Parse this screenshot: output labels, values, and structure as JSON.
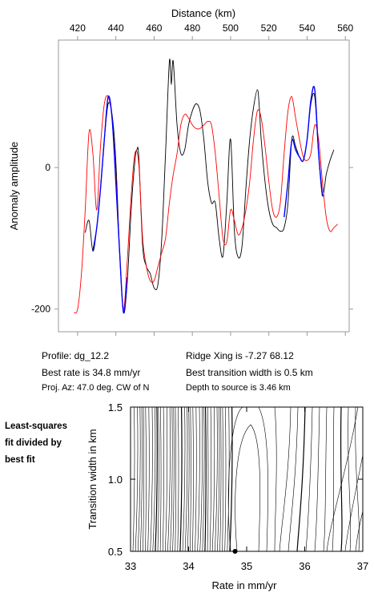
{
  "chart_data": [
    {
      "type": "line",
      "xlabel": "Distance (km)",
      "ylabel": "Anomaly amplitude",
      "xlim": [
        410,
        562
      ],
      "ylim": [
        -232,
        180
      ],
      "x_ticks": [
        420,
        440,
        460,
        480,
        500,
        520,
        540,
        560
      ],
      "y_ticks": [
        0,
        -200
      ],
      "series": [
        {
          "color": "#000000",
          "x": [
            424,
            426,
            428,
            430,
            432,
            434,
            436,
            438,
            440,
            442,
            444,
            446,
            448,
            450,
            451,
            452,
            454,
            456,
            458,
            460,
            462,
            464,
            466,
            468,
            469,
            470,
            472,
            474,
            476,
            478,
            480,
            482,
            484,
            486,
            488,
            490,
            492,
            494,
            496,
            498,
            500,
            502,
            504,
            506,
            508,
            510,
            512,
            514,
            515,
            516,
            518,
            520,
            522,
            524,
            526,
            528,
            530,
            532,
            534,
            536,
            538,
            540,
            542,
            544,
            546,
            548,
            550,
            552,
            554
          ],
          "y": [
            -92,
            -75,
            -118,
            -85,
            -30,
            40,
            90,
            75,
            10,
            -120,
            -205,
            -160,
            -60,
            10,
            25,
            15,
            -110,
            -140,
            -150,
            -170,
            -165,
            -100,
            20,
            150,
            117,
            150,
            60,
            20,
            25,
            60,
            80,
            90,
            80,
            40,
            -20,
            -50,
            -50,
            -100,
            -125,
            -50,
            40,
            -90,
            -127,
            -110,
            -30,
            40,
            85,
            110,
            85,
            40,
            -20,
            -60,
            -80,
            -85,
            -90,
            -85,
            -50,
            40,
            30,
            15,
            10,
            40,
            90,
            100,
            20,
            -40,
            -10,
            10,
            25
          ]
        },
        {
          "color": "#ff0000",
          "x": [
            418,
            420,
            422,
            424,
            426,
            428,
            430,
            432,
            434,
            436,
            438,
            440,
            442,
            444,
            446,
            448,
            450,
            452,
            454,
            456,
            458,
            460,
            462,
            464,
            466,
            468,
            470,
            472,
            474,
            476,
            478,
            480,
            482,
            484,
            486,
            488,
            490,
            492,
            494,
            496,
            498,
            500,
            502,
            504,
            506,
            508,
            510,
            512,
            514,
            516,
            518,
            520,
            522,
            524,
            526,
            528,
            530,
            532,
            534,
            536,
            538,
            540,
            542,
            544,
            546,
            548,
            550,
            552,
            554,
            556
          ],
          "y": [
            -205,
            -200,
            -150,
            -60,
            50,
            20,
            -60,
            30,
            90,
            100,
            70,
            -10,
            -120,
            -200,
            -130,
            -40,
            20,
            5,
            -100,
            -140,
            -160,
            -160,
            -140,
            -120,
            -100,
            -50,
            -10,
            20,
            60,
            75,
            70,
            60,
            55,
            55,
            60,
            65,
            60,
            20,
            -40,
            -100,
            -105,
            -60,
            -75,
            -95,
            -85,
            -60,
            -20,
            40,
            80,
            70,
            30,
            -20,
            -60,
            -70,
            -50,
            20,
            80,
            100,
            70,
            40,
            15,
            10,
            20,
            60,
            40,
            -20,
            -70,
            -90,
            -85,
            -80
          ]
        },
        {
          "color": "#0000ff",
          "x": [
            428,
            430,
            432,
            434,
            436,
            438,
            440,
            442,
            444,
            446
          ],
          "y": [
            -118,
            -85,
            -30,
            40,
            100,
            70,
            -20,
            -120,
            -205,
            -155
          ]
        },
        {
          "color": "#0000ff",
          "x": [
            528,
            530,
            532,
            534,
            536,
            538,
            540,
            542,
            544,
            546,
            548
          ],
          "y": [
            -70,
            -20,
            38,
            25,
            15,
            10,
            40,
            95,
            110,
            20,
            -40
          ]
        }
      ]
    },
    {
      "type": "contour",
      "xlabel": "Rate in mm/yr",
      "ylabel": "Transition width in km",
      "xlim": [
        33,
        37
      ],
      "ylim": [
        0.5,
        1.5
      ],
      "x_ticks": [
        "33",
        "34",
        "35",
        "36",
        "37"
      ],
      "y_ticks": [
        "0.5",
        "1.0",
        "1.5"
      ],
      "minimum_point": {
        "x": 34.8,
        "y": 0.5
      }
    }
  ],
  "info": {
    "profile": "Profile: dg_12.2",
    "best_rate": "Best rate is 34.8 mm/yr",
    "proj_az": "Proj. Az: 47.0 deg. CW of N",
    "ridge_xing": "Ridge Xing is -7.27 68.12",
    "best_transition": "Best transition width is 0.5 km",
    "depth": "Depth to source is   3.46 km"
  },
  "side_note": [
    "Least-squares",
    "fit divided by",
    "best fit"
  ]
}
